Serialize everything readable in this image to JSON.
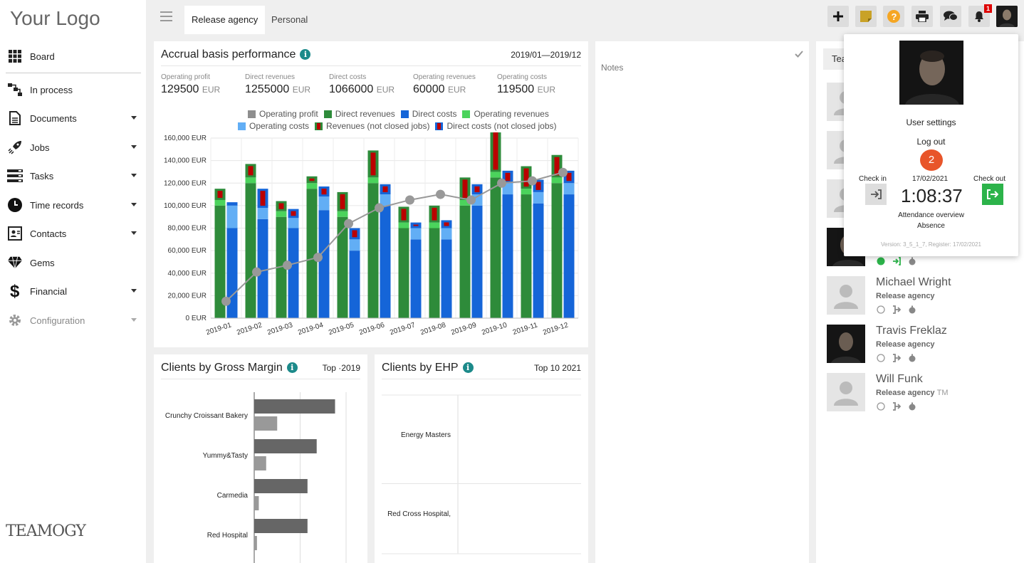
{
  "app": {
    "logo_text": "Your Logo",
    "brand_mark": "TEAMOGY"
  },
  "sidebar": {
    "items": [
      {
        "label": "Board",
        "icon": "grid-icon",
        "has_caret": false
      },
      {
        "label": "In process",
        "icon": "workflow-icon",
        "has_caret": false
      },
      {
        "label": "Documents",
        "icon": "document-icon",
        "has_caret": true
      },
      {
        "label": "Jobs",
        "icon": "rocket-icon",
        "has_caret": true
      },
      {
        "label": "Tasks",
        "icon": "tasks-icon",
        "has_caret": true
      },
      {
        "label": "Time records",
        "icon": "clock-icon",
        "has_caret": true
      },
      {
        "label": "Contacts",
        "icon": "contact-card-icon",
        "has_caret": true
      },
      {
        "label": "Gems",
        "icon": "gem-icon",
        "has_caret": false
      },
      {
        "label": "Financial",
        "icon": "dollar-icon",
        "has_caret": true
      },
      {
        "label": "Configuration",
        "icon": "gear-icon",
        "has_caret": true
      }
    ]
  },
  "topbar": {
    "tabs": [
      {
        "label": "Release agency",
        "active": true
      },
      {
        "label": "Personal",
        "active": false
      }
    ],
    "tools": [
      "plus-icon",
      "sticky-note-icon",
      "help-icon",
      "print-icon",
      "chat-icon",
      "bell-icon",
      "user-avatar"
    ],
    "notification_count": "1"
  },
  "accrual": {
    "title": "Accrual basis performance",
    "range": "2019/01—2019/12",
    "kpis": [
      {
        "label": "Operating profit",
        "value": "129500",
        "unit": "EUR"
      },
      {
        "label": "Direct revenues",
        "value": "1255000",
        "unit": "EUR"
      },
      {
        "label": "Direct costs",
        "value": "1066000",
        "unit": "EUR"
      },
      {
        "label": "Operating revenues",
        "value": "60000",
        "unit": "EUR"
      },
      {
        "label": "Operating costs",
        "value": "119500",
        "unit": "EUR"
      }
    ],
    "legend": [
      {
        "label": "Operating profit",
        "color": "#8e8e8e",
        "inner": false
      },
      {
        "label": "Direct revenues",
        "color": "#2e8b3a",
        "inner": false
      },
      {
        "label": "Direct costs",
        "color": "#1565d8",
        "inner": false
      },
      {
        "label": "Operating revenues",
        "color": "#4bd35c",
        "inner": false
      },
      {
        "label": "Operating costs",
        "color": "#62aef5",
        "inner": false
      },
      {
        "label": "Revenues (not closed jobs)",
        "color": "#2e8b3a",
        "inner": true
      },
      {
        "label": "Direct costs (not closed jobs)",
        "color": "#1565d8",
        "inner": true
      }
    ]
  },
  "chart_data": [
    {
      "type": "bar",
      "title": "Accrual basis performance",
      "categories": [
        "2019-01",
        "2019-02",
        "2019-03",
        "2019-04",
        "2019-05",
        "2019-06",
        "2019-07",
        "2019-08",
        "2019-09",
        "2019-10",
        "2019-11",
        "2019-12"
      ],
      "ylim": [
        0,
        160000
      ],
      "yticks": [
        "0 EUR",
        "20,000 EUR",
        "40,000 EUR",
        "60,000 EUR",
        "80,000 EUR",
        "100,000 EUR",
        "120,000 EUR",
        "140,000 EUR",
        "160,000 EUR"
      ],
      "grid": true,
      "legend_position": "top",
      "series": [
        {
          "name": "Direct revenues",
          "stack": "revenue",
          "values": [
            100000,
            120000,
            90000,
            115000,
            90000,
            120000,
            80000,
            80000,
            100000,
            125000,
            110000,
            120000
          ]
        },
        {
          "name": "Operating revenues",
          "stack": "revenue",
          "values": [
            5000,
            5000,
            5000,
            5000,
            5000,
            5000,
            5000,
            5000,
            5000,
            5000,
            5000,
            5000
          ]
        },
        {
          "name": "Revenues (not closed jobs)",
          "stack": "revenue",
          "values": [
            10000,
            12000,
            9000,
            6000,
            17000,
            24000,
            14000,
            15000,
            20000,
            60000,
            20000,
            20000
          ]
        },
        {
          "name": "Direct costs",
          "stack": "cost",
          "values": [
            80000,
            88000,
            80000,
            96000,
            60000,
            100000,
            70000,
            70000,
            100000,
            110000,
            102000,
            110000
          ]
        },
        {
          "name": "Operating costs",
          "stack": "cost",
          "values": [
            20000,
            10000,
            9000,
            12000,
            10000,
            10000,
            10000,
            10000,
            10000,
            10000,
            10000,
            10000
          ]
        },
        {
          "name": "Direct costs (not closed jobs)",
          "stack": "cost",
          "values": [
            3000,
            17000,
            8000,
            9000,
            10000,
            9000,
            5000,
            7000,
            9000,
            11000,
            11000,
            11000
          ]
        },
        {
          "name": "Operating profit",
          "type": "line",
          "values": [
            15000,
            41000,
            47000,
            54000,
            84000,
            98000,
            105000,
            110000,
            105000,
            120000,
            122000,
            129500
          ]
        }
      ]
    },
    {
      "type": "bar",
      "orientation": "horizontal",
      "title": "Clients by Gross Margin",
      "categories": [
        "Crunchy Croissant Bakery",
        "Yummy&Tasty",
        "Carmedia",
        "Red Hospital"
      ],
      "series": [
        {
          "values": [
            88,
            68,
            58,
            58
          ]
        },
        {
          "values": [
            25,
            13,
            5,
            3
          ]
        }
      ],
      "grid": true
    },
    {
      "type": "bar",
      "orientation": "horizontal",
      "title": "Clients by EHP",
      "categories": [
        "Energy Masters",
        "Red Cross Hospital,"
      ],
      "series": [
        {
          "values": [
            0,
            0
          ]
        }
      ],
      "grid": true
    }
  ],
  "gross_margin": {
    "title": "Clients by Gross Margin",
    "range": "Top ·2019"
  },
  "ehp": {
    "title": "Clients by EHP",
    "range": "Top 10 2021"
  },
  "notes": {
    "placeholder": "Notes"
  },
  "team": {
    "header": "Tea",
    "people": [
      {
        "name": "Michael Wright",
        "org": "Release agency",
        "extra": "",
        "photo": false
      },
      {
        "name": "Travis Freklaz",
        "org": "Release agency",
        "extra": "",
        "photo": true
      },
      {
        "name": "Will Funk",
        "org": "Release agency",
        "extra": "TM",
        "photo": false
      }
    ]
  },
  "popup": {
    "user_settings": "User settings",
    "log_out": "Log out",
    "step_badge": "2",
    "check_in_label": "Check in",
    "check_out_label": "Check out",
    "date": "17/02/2021",
    "timer": "1:08:37",
    "attendance_overview": "Attendance overview",
    "absence": "Absence",
    "version": "Version: 3_5_1_7, Register: 17/02/2021"
  }
}
